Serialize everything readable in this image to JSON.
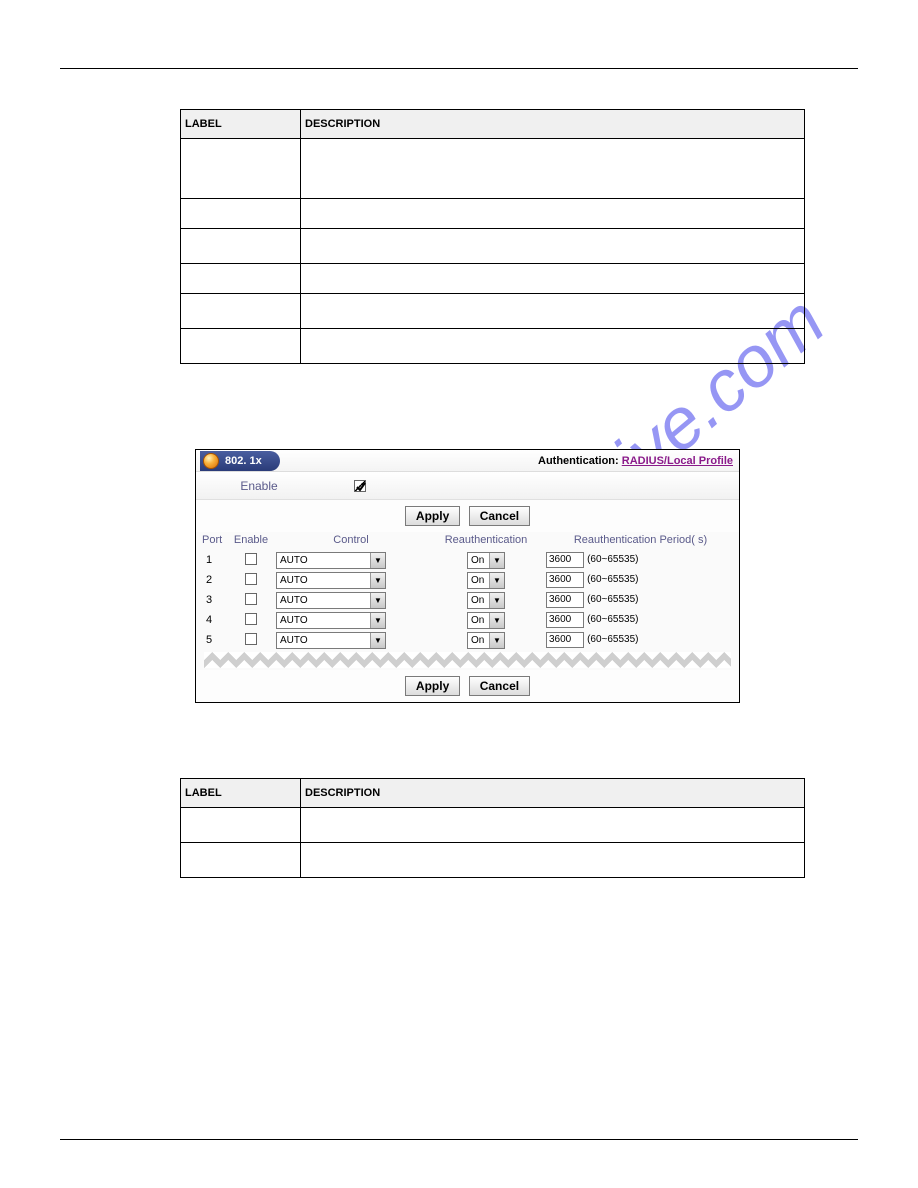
{
  "table1": {
    "header": {
      "label": "LABEL",
      "desc": "DESCRIPTION"
    },
    "rows": [
      {
        "h": "tall"
      },
      {
        "h": "short"
      },
      {
        "h": "med"
      },
      {
        "h": "short"
      },
      {
        "h": "med"
      },
      {
        "h": "med"
      }
    ]
  },
  "screenshot": {
    "pill_label": "802. 1x",
    "right_label": "Authentication:",
    "right_link": "RADIUS/Local Profile",
    "enable_label": "Enable",
    "btn_apply": "Apply",
    "btn_cancel": "Cancel",
    "col_port": "Port",
    "col_enable": "Enable",
    "col_control": "Control",
    "col_reauth": "Reauthentication",
    "col_period": "Reauthentication Period( s)",
    "rows": [
      {
        "port": "1",
        "control": "AUTO",
        "reauth": "On",
        "period": "3600",
        "range": "(60~65535)"
      },
      {
        "port": "2",
        "control": "AUTO",
        "reauth": "On",
        "period": "3600",
        "range": "(60~65535)"
      },
      {
        "port": "3",
        "control": "AUTO",
        "reauth": "On",
        "period": "3600",
        "range": "(60~65535)"
      },
      {
        "port": "4",
        "control": "AUTO",
        "reauth": "On",
        "period": "3600",
        "range": "(60~65535)"
      },
      {
        "port": "5",
        "control": "AUTO",
        "reauth": "On",
        "period": "3600",
        "range": "(60~65535)"
      }
    ]
  },
  "table2": {
    "header": {
      "label": "LABEL",
      "desc": "DESCRIPTION"
    },
    "rows": [
      {
        "h": "med"
      },
      {
        "h": "med"
      }
    ]
  },
  "watermark": {
    "text": "manualshive.com",
    "color": "#6a6af0",
    "opacity": 0.7,
    "fontsize": 72
  }
}
